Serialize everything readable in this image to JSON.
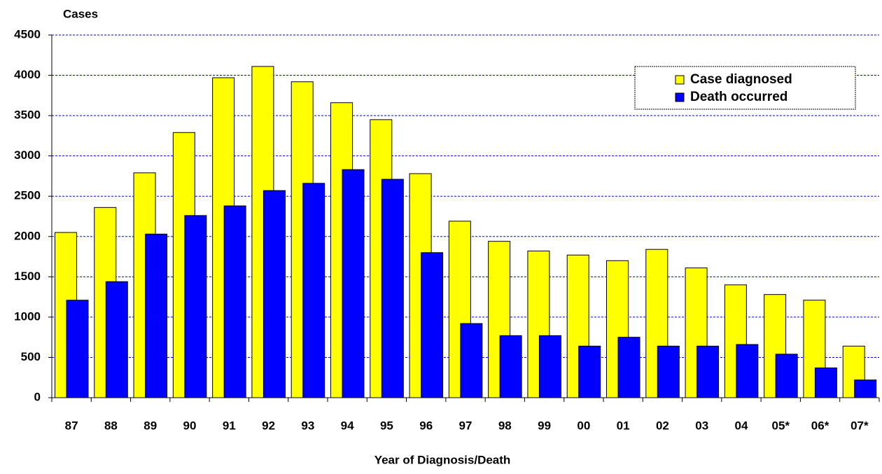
{
  "chart_data": {
    "type": "bar",
    "y_label": "Cases",
    "x_label": "Year of Diagnosis/Death",
    "categories": [
      "87",
      "88",
      "89",
      "90",
      "91",
      "92",
      "93",
      "94",
      "95",
      "96",
      "97",
      "98",
      "99",
      "00",
      "01",
      "02",
      "03",
      "04",
      "05*",
      "06*",
      "07*"
    ],
    "series": [
      {
        "name": "Case diagnosed",
        "color": "#ffff00",
        "values": [
          2050,
          2360,
          2790,
          3290,
          3970,
          4110,
          3920,
          3660,
          3450,
          2780,
          2190,
          1940,
          1820,
          1770,
          1700,
          1840,
          1610,
          1400,
          1280,
          1210,
          640
        ]
      },
      {
        "name": "Death occurred",
        "color": "#0000ff",
        "values": [
          1210,
          1440,
          2030,
          2260,
          2380,
          2570,
          2660,
          2830,
          2710,
          1800,
          920,
          770,
          770,
          640,
          750,
          640,
          640,
          660,
          540,
          370,
          220
        ]
      }
    ],
    "ylim": [
      0,
      4500
    ],
    "yticks": [
      0,
      500,
      1000,
      1500,
      2000,
      2500,
      3000,
      3500,
      4000,
      4500
    ],
    "grid": true,
    "legend": "upper right"
  }
}
